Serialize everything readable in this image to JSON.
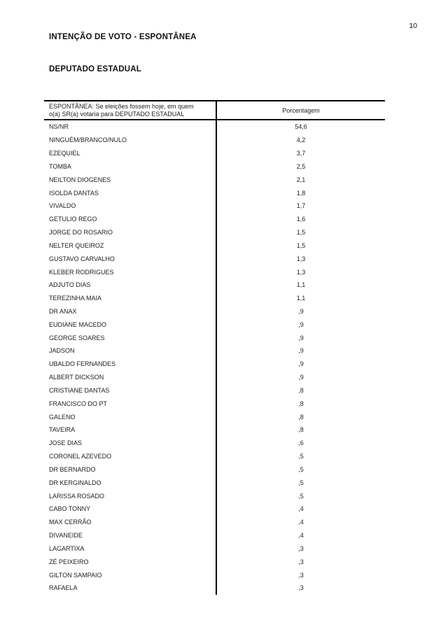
{
  "page": {
    "number": "10",
    "background_color": "#ffffff",
    "text_color": "#1c1c1c",
    "rule_color": "#000000"
  },
  "titles": {
    "main": "INTENÇÃO DE VOTO - ESPONTÂNEA",
    "section": "DEPUTADO ESTADUAL"
  },
  "table": {
    "question_header_line1": "ESPONTÂNEA: Se eleições fossem hoje, em quem",
    "question_header_line2": "o(a) SR(a) votaria para DEPUTADO ESTADUAL",
    "value_header": "Porcentagem",
    "rows": [
      {
        "name": "NS/NR",
        "value": "54,6"
      },
      {
        "name": "NINGUÉM/BRANCO/NULO",
        "value": "4,2"
      },
      {
        "name": "EZEQUIEL",
        "value": "3,7"
      },
      {
        "name": "TOMBA",
        "value": "2,5"
      },
      {
        "name": "NEILTON DIOGENES",
        "value": "2,1"
      },
      {
        "name": "ISOLDA DANTAS",
        "value": "1,8"
      },
      {
        "name": "VIVALDO",
        "value": "1,7"
      },
      {
        "name": "GETULIO REGO",
        "value": "1,6"
      },
      {
        "name": "JORGE DO ROSARIO",
        "value": "1,5"
      },
      {
        "name": "NELTER QUEIROZ",
        "value": "1,5"
      },
      {
        "name": "GUSTAVO CARVALHO",
        "value": "1,3"
      },
      {
        "name": "KLEBER RODRIGUES",
        "value": "1,3"
      },
      {
        "name": "ADJUTO DIAS",
        "value": "1,1"
      },
      {
        "name": "TEREZINHA MAIA",
        "value": "1,1"
      },
      {
        "name": "DR ANAX",
        "value": ",9"
      },
      {
        "name": "EUDIANE MACEDO",
        "value": ",9"
      },
      {
        "name": "GEORGE SOARES",
        "value": ",9"
      },
      {
        "name": "JADSON",
        "value": ",9"
      },
      {
        "name": "UBALDO FERNANDES",
        "value": ",9"
      },
      {
        "name": "ALBERT DICKSON",
        "value": ",9"
      },
      {
        "name": "CRISTIANE DANTAS",
        "value": ",8"
      },
      {
        "name": "FRANCISCO DO PT",
        "value": ",8"
      },
      {
        "name": "GALENO",
        "value": ",8"
      },
      {
        "name": "TAVEIRA",
        "value": ",8"
      },
      {
        "name": "JOSE DIAS",
        "value": ",6"
      },
      {
        "name": "CORONEL AZEVEDO",
        "value": ",5"
      },
      {
        "name": "DR BERNARDO",
        "value": ",5"
      },
      {
        "name": "DR KERGINALDO",
        "value": ",5"
      },
      {
        "name": "LARISSA ROSADO",
        "value": ",5"
      },
      {
        "name": "CABO TONNY",
        "value": ",4"
      },
      {
        "name": "MAX CERRÃO",
        "value": ",4"
      },
      {
        "name": "DIVANEIDE",
        "value": ",4"
      },
      {
        "name": "LAGARTIXA",
        "value": ",3"
      },
      {
        "name": "ZÉ PEIXEIRO",
        "value": ",3"
      },
      {
        "name": "GILTON SAMPAIO",
        "value": ",3"
      },
      {
        "name": "RAFAELA",
        "value": ",3"
      }
    ]
  }
}
